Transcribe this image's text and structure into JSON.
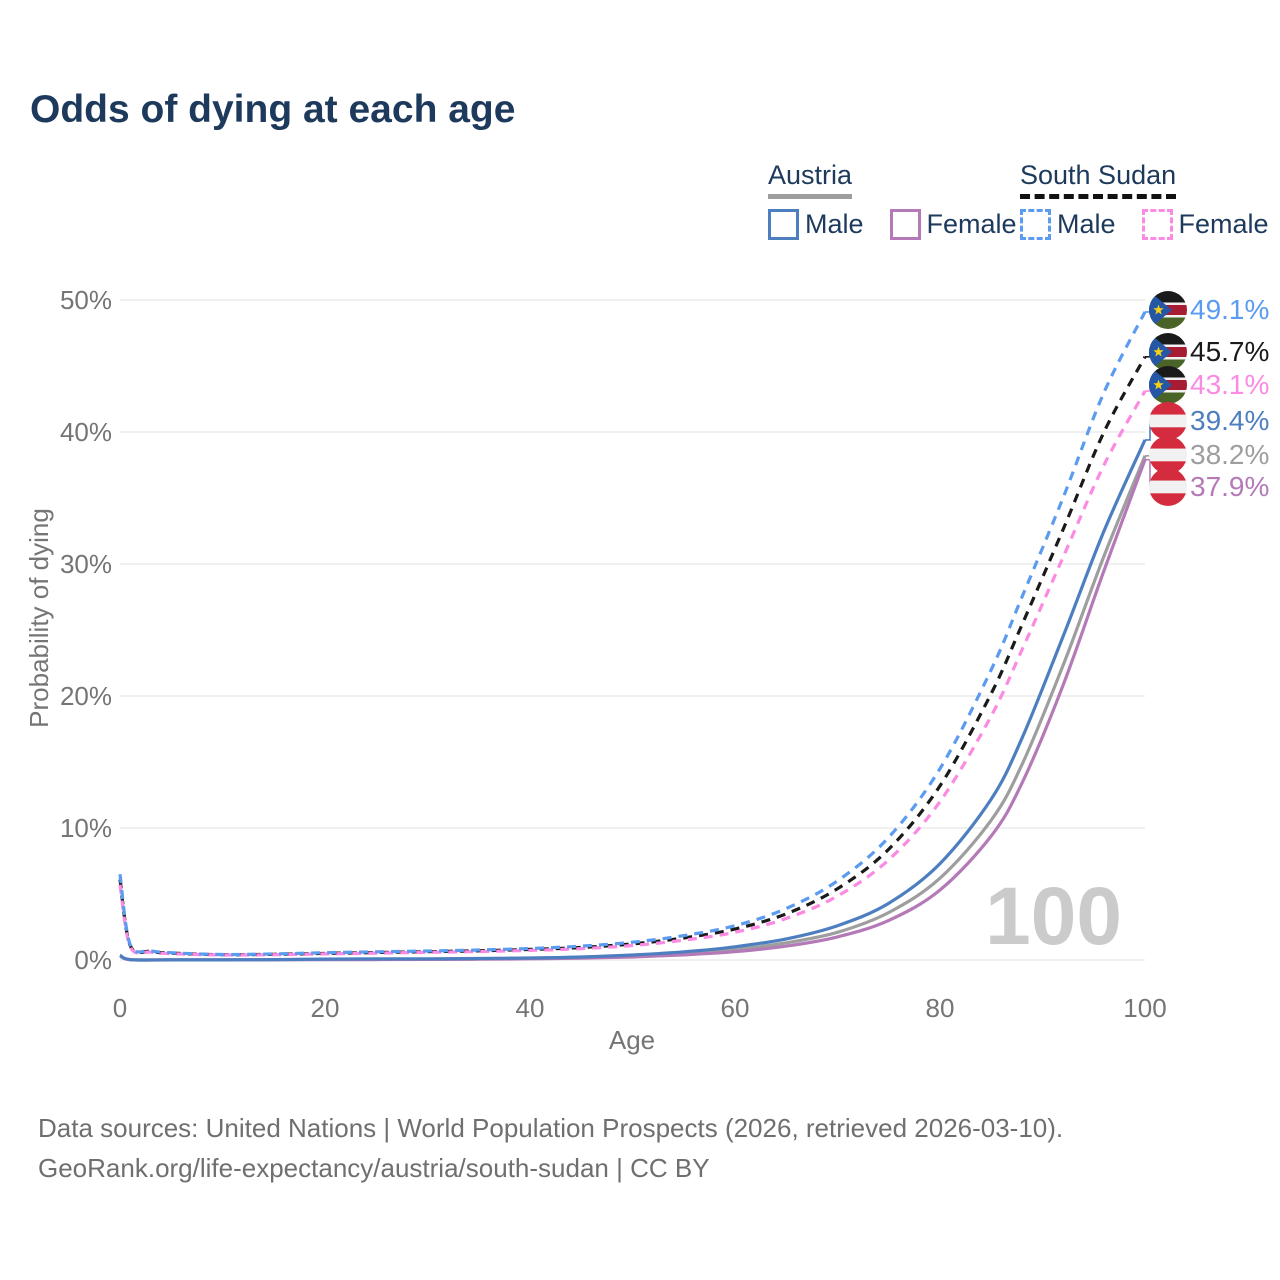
{
  "title": "Odds of dying at each age",
  "legend": {
    "groups": [
      {
        "label": "Austria",
        "style": "solid",
        "items": [
          {
            "label": "Male",
            "color_key": "austria_male"
          },
          {
            "label": "Female",
            "color_key": "austria_female"
          }
        ]
      },
      {
        "label": "South Sudan",
        "style": "dashed",
        "items": [
          {
            "label": "Male",
            "color_key": "south_sudan_male"
          },
          {
            "label": "Female",
            "color_key": "south_sudan_female"
          }
        ]
      }
    ]
  },
  "colors": {
    "austria_male": "#4d7ec0",
    "austria_female": "#b47ab8",
    "austria_total": "#9e9e9e",
    "south_sudan_male": "#5b9bf0",
    "south_sudan_female": "#fb8ae2",
    "south_sudan_total": "#1a1a1a",
    "title_text": "#1d3a5c",
    "tick_text": "#757575",
    "grid": "#ececec",
    "watermark_text": "#cbcbcb"
  },
  "watermark": "100",
  "footer": {
    "line1": "Data sources: United Nations | World Population Prospects (2026, retrieved 2026-03-10).",
    "line2": "GeoRank.org/life-expectancy/austria/south-sudan | CC BY"
  },
  "chart_data": {
    "type": "line",
    "title": "Odds of dying at each age",
    "xlabel": "Age",
    "ylabel": "Probability of dying",
    "xlim": [
      0,
      100
    ],
    "ylim": [
      0,
      50
    ],
    "x_ticks": [
      0,
      20,
      40,
      60,
      80,
      100
    ],
    "y_ticks": [
      "0%",
      "10%",
      "20%",
      "30%",
      "40%",
      "50%"
    ],
    "grid": true,
    "legend_position": "top-right",
    "series": [
      {
        "name": "South Sudan Male",
        "flag": "south-sudan",
        "color_key": "south_sudan_male",
        "dashed": true,
        "end_label": "49.1%",
        "end_value": 49.1,
        "points": [
          [
            0,
            6.5
          ],
          [
            1,
            1.15
          ],
          [
            3,
            0.7
          ],
          [
            5,
            0.55
          ],
          [
            10,
            0.42
          ],
          [
            15,
            0.46
          ],
          [
            20,
            0.55
          ],
          [
            25,
            0.62
          ],
          [
            30,
            0.68
          ],
          [
            35,
            0.76
          ],
          [
            40,
            0.87
          ],
          [
            45,
            1.05
          ],
          [
            50,
            1.35
          ],
          [
            55,
            1.85
          ],
          [
            60,
            2.6
          ],
          [
            65,
            3.9
          ],
          [
            70,
            6.0
          ],
          [
            75,
            9.3
          ],
          [
            80,
            14.5
          ],
          [
            85,
            22.0
          ],
          [
            88,
            27.5
          ],
          [
            92,
            35.0
          ],
          [
            96,
            43.0
          ],
          [
            100,
            49.1
          ]
        ]
      },
      {
        "name": "South Sudan",
        "flag": "south-sudan",
        "color_key": "south_sudan_total",
        "dashed": true,
        "end_label": "45.7%",
        "end_value": 45.7,
        "points": [
          [
            0,
            6.1
          ],
          [
            1,
            1.08
          ],
          [
            3,
            0.65
          ],
          [
            5,
            0.52
          ],
          [
            10,
            0.4
          ],
          [
            15,
            0.43
          ],
          [
            20,
            0.5
          ],
          [
            25,
            0.57
          ],
          [
            30,
            0.63
          ],
          [
            35,
            0.7
          ],
          [
            40,
            0.8
          ],
          [
            45,
            0.95
          ],
          [
            50,
            1.22
          ],
          [
            55,
            1.67
          ],
          [
            60,
            2.35
          ],
          [
            65,
            3.5
          ],
          [
            70,
            5.4
          ],
          [
            75,
            8.4
          ],
          [
            80,
            13.2
          ],
          [
            85,
            20.2
          ],
          [
            88,
            25.4
          ],
          [
            92,
            32.6
          ],
          [
            96,
            40.0
          ],
          [
            100,
            45.7
          ]
        ]
      },
      {
        "name": "South Sudan Female",
        "flag": "south-sudan",
        "color_key": "south_sudan_female",
        "dashed": true,
        "end_label": "43.1%",
        "end_value": 43.1,
        "points": [
          [
            0,
            5.7
          ],
          [
            1,
            1.0
          ],
          [
            3,
            0.6
          ],
          [
            5,
            0.48
          ],
          [
            10,
            0.38
          ],
          [
            15,
            0.4
          ],
          [
            20,
            0.46
          ],
          [
            25,
            0.52
          ],
          [
            30,
            0.58
          ],
          [
            35,
            0.64
          ],
          [
            40,
            0.73
          ],
          [
            45,
            0.86
          ],
          [
            50,
            1.1
          ],
          [
            55,
            1.5
          ],
          [
            60,
            2.1
          ],
          [
            65,
            3.15
          ],
          [
            70,
            4.85
          ],
          [
            75,
            7.6
          ],
          [
            80,
            12.0
          ],
          [
            85,
            18.5
          ],
          [
            88,
            23.5
          ],
          [
            92,
            30.5
          ],
          [
            96,
            37.5
          ],
          [
            100,
            43.1
          ]
        ]
      },
      {
        "name": "Austria Male",
        "flag": "austria",
        "color_key": "austria_male",
        "dashed": false,
        "end_label": "39.4%",
        "end_value": 39.4,
        "points": [
          [
            0,
            0.36
          ],
          [
            1,
            0.03
          ],
          [
            5,
            0.01
          ],
          [
            10,
            0.01
          ],
          [
            15,
            0.03
          ],
          [
            20,
            0.07
          ],
          [
            25,
            0.08
          ],
          [
            30,
            0.09
          ],
          [
            35,
            0.11
          ],
          [
            40,
            0.15
          ],
          [
            45,
            0.23
          ],
          [
            50,
            0.38
          ],
          [
            55,
            0.62
          ],
          [
            60,
            1.0
          ],
          [
            65,
            1.6
          ],
          [
            70,
            2.6
          ],
          [
            75,
            4.3
          ],
          [
            80,
            7.3
          ],
          [
            85,
            12.2
          ],
          [
            88,
            16.8
          ],
          [
            92,
            24.5
          ],
          [
            96,
            32.5
          ],
          [
            100,
            39.4
          ]
        ]
      },
      {
        "name": "Austria",
        "flag": "austria",
        "color_key": "austria_total",
        "dashed": false,
        "end_label": "38.2%",
        "end_value": 38.2,
        "points": [
          [
            0,
            0.34
          ],
          [
            1,
            0.028
          ],
          [
            5,
            0.009
          ],
          [
            10,
            0.009
          ],
          [
            15,
            0.022
          ],
          [
            20,
            0.05
          ],
          [
            25,
            0.056
          ],
          [
            30,
            0.065
          ],
          [
            35,
            0.085
          ],
          [
            40,
            0.12
          ],
          [
            45,
            0.18
          ],
          [
            50,
            0.3
          ],
          [
            55,
            0.5
          ],
          [
            60,
            0.8
          ],
          [
            65,
            1.3
          ],
          [
            70,
            2.1
          ],
          [
            75,
            3.6
          ],
          [
            80,
            6.2
          ],
          [
            85,
            10.6
          ],
          [
            88,
            14.8
          ],
          [
            92,
            22.3
          ],
          [
            96,
            30.6
          ],
          [
            100,
            38.2
          ]
        ]
      },
      {
        "name": "Austria Female",
        "flag": "austria",
        "color_key": "austria_female",
        "dashed": false,
        "end_label": "37.9%",
        "end_value": 37.9,
        "points": [
          [
            0,
            0.31
          ],
          [
            1,
            0.025
          ],
          [
            5,
            0.008
          ],
          [
            10,
            0.008
          ],
          [
            15,
            0.015
          ],
          [
            20,
            0.027
          ],
          [
            25,
            0.032
          ],
          [
            30,
            0.042
          ],
          [
            35,
            0.062
          ],
          [
            40,
            0.09
          ],
          [
            45,
            0.14
          ],
          [
            50,
            0.23
          ],
          [
            55,
            0.39
          ],
          [
            60,
            0.63
          ],
          [
            65,
            1.05
          ],
          [
            70,
            1.75
          ],
          [
            75,
            3.0
          ],
          [
            80,
            5.3
          ],
          [
            85,
            9.4
          ],
          [
            88,
            13.4
          ],
          [
            92,
            20.8
          ],
          [
            96,
            29.5
          ],
          [
            100,
            37.9
          ]
        ]
      }
    ]
  }
}
